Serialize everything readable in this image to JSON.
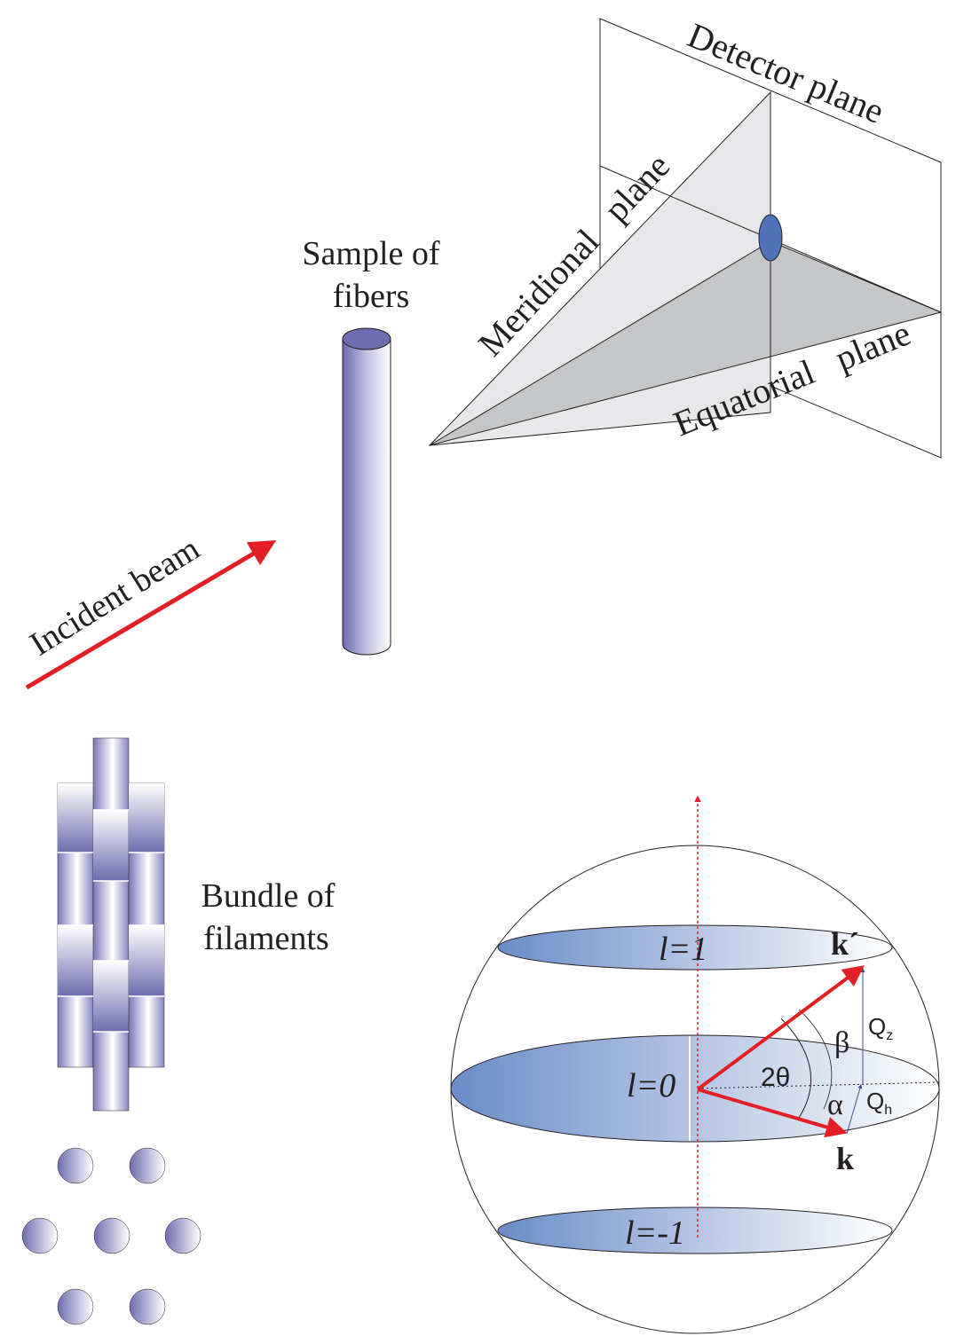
{
  "labels": {
    "detector_plane": "Detector plane",
    "meridional_plane": "Meridional   plane",
    "equatorial_plane": "Equatorial   plane",
    "sample_of": "Sample of",
    "fibers": "fibers",
    "incident_beam": "Incident beam",
    "bundle_of": "Bundle of",
    "filaments": "filaments"
  },
  "sphere": {
    "layer_top": "l=1",
    "layer_mid": "l=0",
    "layer_bot": "l=-1",
    "k_prime": "k´",
    "k": "k",
    "two_theta": "2θ",
    "beta": "β",
    "alpha": "α",
    "qz_main": "Q",
    "qz_sub": "z",
    "qh_main": "Q",
    "qh_sub": "h"
  },
  "colors": {
    "beam_red": "#e31e24",
    "spot_blue": "#4f72b8",
    "layer_blue": "#6a8cc8",
    "cylinder_purple": "#6e6cae"
  }
}
